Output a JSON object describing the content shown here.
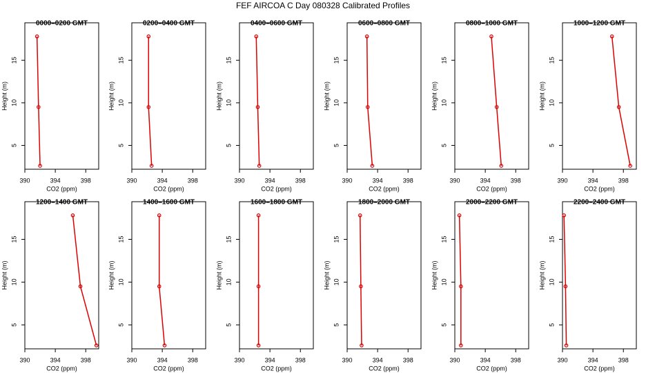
{
  "title": "FEF AIRCOA C  Day 080328  Calibrated Profiles",
  "chart_data": [
    {
      "type": "line",
      "title": "0000–0200 GMT",
      "x_label": "CO2 (ppm)",
      "y_label": "Height (m)",
      "x": [
        392.0,
        391.8,
        391.6
      ],
      "values": [
        2.6,
        9.5,
        17.8
      ],
      "color": "#dd0000",
      "xlim": [
        390,
        399.7
      ],
      "ylim": [
        2.2,
        19.4
      ],
      "xticks": [
        390,
        394,
        398
      ],
      "yticks": [
        5,
        10,
        15
      ]
    },
    {
      "type": "line",
      "title": "0200–0400 GMT",
      "x_label": "CO2 (ppm)",
      "y_label": "Height (m)",
      "x": [
        392.6,
        392.2,
        392.2
      ],
      "values": [
        2.6,
        9.5,
        17.8
      ],
      "color": "#dd0000",
      "xlim": [
        390,
        399.7
      ],
      "ylim": [
        2.2,
        19.4
      ],
      "xticks": [
        390,
        394,
        398
      ],
      "yticks": [
        5,
        10,
        15
      ]
    },
    {
      "type": "line",
      "title": "0400–0600 GMT",
      "x_label": "CO2 (ppm)",
      "y_label": "Height (m)",
      "x": [
        392.6,
        392.4,
        392.2
      ],
      "values": [
        2.6,
        9.5,
        17.8
      ],
      "color": "#dd0000",
      "xlim": [
        390,
        399.7
      ],
      "ylim": [
        2.2,
        19.4
      ],
      "xticks": [
        390,
        394,
        398
      ],
      "yticks": [
        5,
        10,
        15
      ]
    },
    {
      "type": "line",
      "title": "0600–0800 GMT",
      "x_label": "CO2 (ppm)",
      "y_label": "Height (m)",
      "x": [
        393.3,
        392.7,
        392.6
      ],
      "values": [
        2.6,
        9.5,
        17.8
      ],
      "color": "#dd0000",
      "xlim": [
        390,
        399.7
      ],
      "ylim": [
        2.2,
        19.4
      ],
      "xticks": [
        390,
        394,
        398
      ],
      "yticks": [
        5,
        10,
        15
      ]
    },
    {
      "type": "line",
      "title": "0800–1000 GMT",
      "x_label": "CO2 (ppm)",
      "y_label": "Height (m)",
      "x": [
        396.1,
        395.5,
        394.8
      ],
      "values": [
        2.6,
        9.5,
        17.8
      ],
      "color": "#dd0000",
      "xlim": [
        390,
        399.7
      ],
      "ylim": [
        2.2,
        19.4
      ],
      "xticks": [
        390,
        394,
        398
      ],
      "yticks": [
        5,
        10,
        15
      ]
    },
    {
      "type": "line",
      "title": "1000–1200 GMT",
      "x_label": "CO2 (ppm)",
      "y_label": "Height (m)",
      "x": [
        398.9,
        397.4,
        396.5
      ],
      "values": [
        2.6,
        9.5,
        17.8
      ],
      "color": "#dd0000",
      "xlim": [
        390,
        399.7
      ],
      "ylim": [
        2.2,
        19.4
      ],
      "xticks": [
        390,
        394,
        398
      ],
      "yticks": [
        5,
        10,
        15
      ]
    },
    {
      "type": "line",
      "title": "1200–1400 GMT",
      "x_label": "CO2 (ppm)",
      "y_label": "Height (m)",
      "x": [
        399.4,
        397.3,
        396.3
      ],
      "values": [
        2.6,
        9.5,
        17.8
      ],
      "color": "#dd0000",
      "xlim": [
        390,
        399.7
      ],
      "ylim": [
        2.2,
        19.4
      ],
      "xticks": [
        390,
        394,
        398
      ],
      "yticks": [
        5,
        10,
        15
      ]
    },
    {
      "type": "line",
      "title": "1400–1600 GMT",
      "x_label": "CO2 (ppm)",
      "y_label": "Height (m)",
      "x": [
        394.3,
        393.6,
        393.6
      ],
      "values": [
        2.6,
        9.5,
        17.8
      ],
      "color": "#dd0000",
      "xlim": [
        390,
        399.7
      ],
      "ylim": [
        2.2,
        19.4
      ],
      "xticks": [
        390,
        394,
        398
      ],
      "yticks": [
        5,
        10,
        15
      ]
    },
    {
      "type": "line",
      "title": "1600–1800 GMT",
      "x_label": "CO2 (ppm)",
      "y_label": "Height (m)",
      "x": [
        392.5,
        392.5,
        392.5
      ],
      "values": [
        2.6,
        9.5,
        17.8
      ],
      "color": "#dd0000",
      "xlim": [
        390,
        399.7
      ],
      "ylim": [
        2.2,
        19.4
      ],
      "xticks": [
        390,
        394,
        398
      ],
      "yticks": [
        5,
        10,
        15
      ]
    },
    {
      "type": "line",
      "title": "1800–2000 GMT",
      "x_label": "CO2 (ppm)",
      "y_label": "Height (m)",
      "x": [
        391.9,
        391.8,
        391.7
      ],
      "values": [
        2.6,
        9.5,
        17.8
      ],
      "color": "#dd0000",
      "xlim": [
        390,
        399.7
      ],
      "ylim": [
        2.2,
        19.4
      ],
      "xticks": [
        390,
        394,
        398
      ],
      "yticks": [
        5,
        10,
        15
      ]
    },
    {
      "type": "line",
      "title": "2000–2200 GMT",
      "x_label": "CO2 (ppm)",
      "y_label": "Height (m)",
      "x": [
        390.8,
        390.8,
        390.6
      ],
      "values": [
        2.6,
        9.5,
        17.8
      ],
      "color": "#dd0000",
      "xlim": [
        390,
        399.7
      ],
      "ylim": [
        2.2,
        19.4
      ],
      "xticks": [
        390,
        394,
        398
      ],
      "yticks": [
        5,
        10,
        15
      ]
    },
    {
      "type": "line",
      "title": "2200–2400 GMT",
      "x_label": "CO2 (ppm)",
      "y_label": "Height (m)",
      "x": [
        390.5,
        390.4,
        390.2
      ],
      "values": [
        2.6,
        9.5,
        17.8
      ],
      "color": "#dd0000",
      "xlim": [
        390,
        399.7
      ],
      "ylim": [
        2.2,
        19.4
      ],
      "xticks": [
        390,
        394,
        398
      ],
      "yticks": [
        5,
        10,
        15
      ]
    }
  ]
}
